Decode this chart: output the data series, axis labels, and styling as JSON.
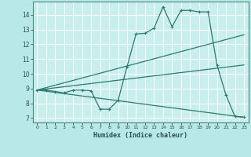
{
  "xlabel": "Humidex (Indice chaleur)",
  "background_color": "#b8e8e8",
  "plot_bg_color": "#c8eeee",
  "grid_color": "#ffffff",
  "line_color": "#2d7a6e",
  "spine_color": "#4a8a80",
  "tick_color": "#2d5050",
  "xlim": [
    -0.5,
    23.5
  ],
  "ylim": [
    6.7,
    14.9
  ],
  "yticks": [
    7,
    8,
    9,
    10,
    11,
    12,
    13,
    14
  ],
  "xticks": [
    0,
    1,
    2,
    3,
    4,
    5,
    6,
    7,
    8,
    9,
    10,
    11,
    12,
    13,
    14,
    15,
    16,
    17,
    18,
    19,
    20,
    21,
    22,
    23
  ],
  "curve_x": [
    0,
    1,
    2,
    3,
    4,
    5,
    6,
    7,
    8,
    9,
    10,
    11,
    12,
    13,
    14,
    15,
    16,
    17,
    18,
    19,
    20,
    21,
    22,
    23
  ],
  "curve_y": [
    8.9,
    8.9,
    8.8,
    8.7,
    8.9,
    8.9,
    8.85,
    7.6,
    7.6,
    8.2,
    10.5,
    12.7,
    12.75,
    13.1,
    14.55,
    13.2,
    14.3,
    14.3,
    14.2,
    14.2,
    10.6,
    8.55,
    7.1,
    7.05
  ],
  "upper_line": {
    "x": [
      0,
      23
    ],
    "y": [
      8.9,
      12.65
    ]
  },
  "lower_line": {
    "x": [
      0,
      23
    ],
    "y": [
      8.9,
      7.05
    ]
  },
  "mid_line": {
    "x": [
      0,
      23
    ],
    "y": [
      8.9,
      10.6
    ]
  }
}
